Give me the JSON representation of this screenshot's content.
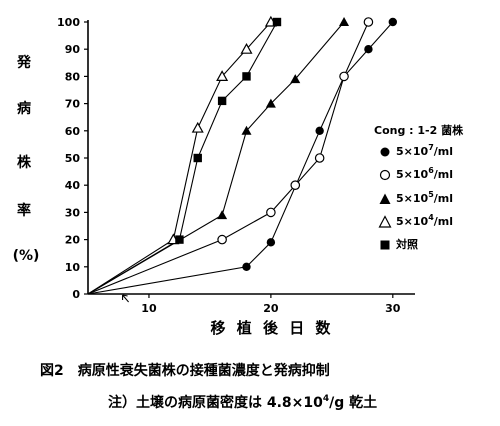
{
  "chart_data": {
    "type": "line",
    "xlabel": "移 植 後 日 数",
    "ylabel_chars": [
      "発",
      "病",
      "株",
      "率"
    ],
    "ylabel_unit": "(%)",
    "xlim": [
      5,
      31
    ],
    "ylim": [
      0,
      100
    ],
    "x_ticks": [
      10,
      20,
      30
    ],
    "y_ticks": [
      0,
      10,
      20,
      30,
      40,
      50,
      60,
      70,
      80,
      90,
      100
    ],
    "grid": false,
    "legend_position": "right",
    "legend_title": "Cong : 1-2 菌株",
    "series": [
      {
        "name": "5×10^7/ml",
        "base": "5×10",
        "exp": "7",
        "tail": "/ml",
        "marker": "filled-circle",
        "points": [
          [
            18,
            10
          ],
          [
            20,
            19
          ],
          [
            24,
            60
          ],
          [
            26,
            80
          ],
          [
            28,
            90
          ],
          [
            30,
            100
          ]
        ]
      },
      {
        "name": "5×10^6/ml",
        "base": "5×10",
        "exp": "6",
        "tail": "/ml",
        "marker": "open-circle",
        "points": [
          [
            16,
            20
          ],
          [
            20,
            30
          ],
          [
            22,
            40
          ],
          [
            24,
            50
          ],
          [
            26,
            80
          ],
          [
            28,
            100
          ]
        ]
      },
      {
        "name": "5×10^5/ml",
        "base": "5×10",
        "exp": "5",
        "tail": "/ml",
        "marker": "filled-triangle",
        "points": [
          [
            16,
            29
          ],
          [
            18,
            60
          ],
          [
            20,
            70
          ],
          [
            22,
            79
          ],
          [
            26,
            100
          ]
        ]
      },
      {
        "name": "5×10^4/ml",
        "base": "5×10",
        "exp": "4",
        "tail": "/ml",
        "marker": "open-triangle",
        "points": [
          [
            12,
            20
          ],
          [
            14,
            61
          ],
          [
            16,
            80
          ],
          [
            18,
            90
          ],
          [
            20,
            100
          ]
        ]
      },
      {
        "name": "対照",
        "base": "対照",
        "exp": "",
        "tail": "",
        "marker": "filled-square",
        "points": [
          [
            12.5,
            20
          ],
          [
            14,
            50
          ],
          [
            16,
            71
          ],
          [
            18,
            80
          ],
          [
            20.5,
            100
          ]
        ]
      }
    ],
    "origin": [
      5,
      0
    ],
    "arrow_marker_x": 8
  },
  "caption": {
    "line1": "図2　病原性衰失菌株の接種菌濃度と発病抑制",
    "line2_prefix": "注）土壌の病原菌密度は 4.8×10",
    "line2_exp": "4",
    "line2_suffix": "/g 乾土"
  }
}
